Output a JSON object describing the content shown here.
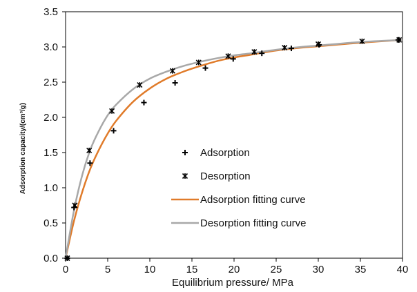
{
  "chart_data": {
    "type": "scatter",
    "xlabel": "Equilibrium pressure/ MPa",
    "ylabel": "Adsorption capacity/(cm³/g)",
    "xlim": [
      0,
      40
    ],
    "ylim": [
      0,
      3.5
    ],
    "x_ticks": [
      "0",
      "5",
      "10",
      "15",
      "20",
      "25",
      "30",
      "35",
      "40"
    ],
    "y_ticks": [
      "0.0",
      "0.5",
      "1.0",
      "1.5",
      "2.0",
      "2.5",
      "3.0",
      "3.5"
    ],
    "grid": false,
    "legend_position": "center-right",
    "series": [
      {
        "name": "Adsorption",
        "kind": "points",
        "marker": "plus",
        "color": "#000000",
        "x": [
          0.2,
          1.0,
          2.9,
          5.7,
          9.3,
          13.0,
          16.6,
          19.9,
          23.3,
          26.8,
          30.1,
          39.5
        ],
        "y": [
          0.0,
          0.72,
          1.35,
          1.81,
          2.21,
          2.49,
          2.7,
          2.83,
          2.91,
          2.98,
          3.03,
          3.1
        ]
      },
      {
        "name": "Desorption",
        "kind": "points",
        "marker": "asterisk",
        "color": "#000000",
        "x": [
          0.2,
          1.1,
          2.8,
          5.5,
          8.8,
          12.7,
          15.8,
          19.3,
          22.4,
          26.0,
          30.0,
          35.2,
          39.6
        ],
        "y": [
          0.0,
          0.75,
          1.53,
          2.09,
          2.46,
          2.66,
          2.78,
          2.87,
          2.93,
          2.99,
          3.04,
          3.08,
          3.1
        ]
      },
      {
        "name": "Adsorption fitting curve",
        "kind": "line",
        "color": "#e07b2a",
        "x": [
          0,
          1,
          2,
          3,
          4,
          5,
          6,
          8,
          10,
          12,
          14,
          16,
          18,
          20,
          22,
          25,
          28,
          30,
          35,
          40
        ],
        "y": [
          0,
          0.53,
          0.95,
          1.29,
          1.55,
          1.77,
          1.95,
          2.22,
          2.41,
          2.55,
          2.65,
          2.73,
          2.8,
          2.85,
          2.89,
          2.95,
          2.99,
          3.01,
          3.06,
          3.1
        ]
      },
      {
        "name": "Desorption fitting curve",
        "kind": "line",
        "color": "#a8a8a8",
        "x": [
          0,
          1,
          2,
          3,
          4,
          5,
          6,
          8,
          10,
          12,
          14,
          16,
          18,
          20,
          22,
          25,
          28,
          30,
          35,
          40
        ],
        "y": [
          0,
          0.68,
          1.19,
          1.56,
          1.82,
          2.03,
          2.18,
          2.4,
          2.55,
          2.65,
          2.73,
          2.79,
          2.84,
          2.88,
          2.91,
          2.96,
          3.0,
          3.02,
          3.07,
          3.1
        ]
      }
    ]
  }
}
